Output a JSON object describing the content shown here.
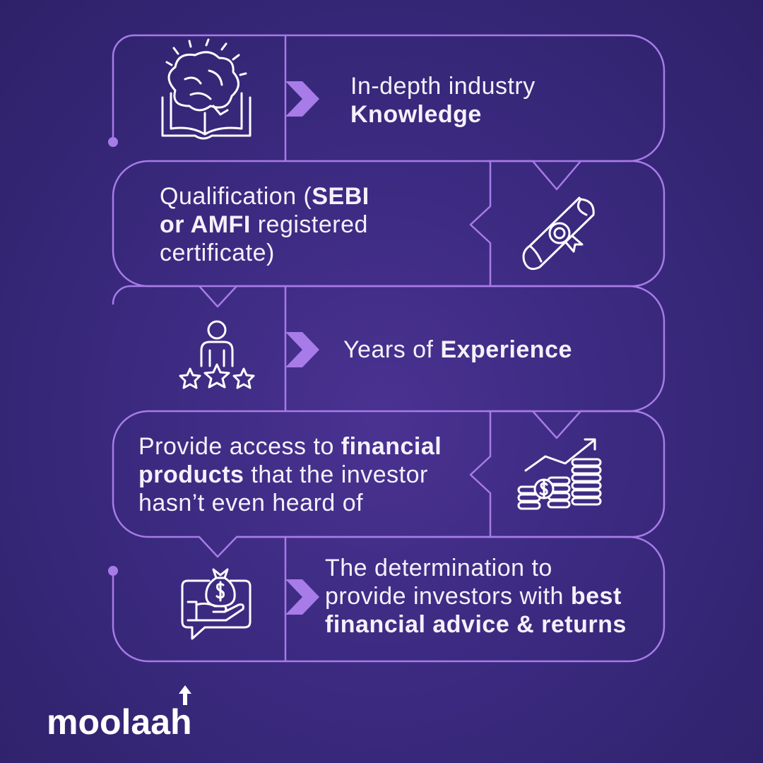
{
  "accent_color": "#a77be8",
  "background_color": "#3b2a80",
  "items": [
    {
      "icon": "brain-book-icon",
      "text_regular": "In-depth industry",
      "text_bold": "Knowledge"
    },
    {
      "icon": "certificate-scroll-icon",
      "text_regular_1": "Qualification (",
      "text_bold_1": "SEBI",
      "text_bold_2": "or AMFI",
      "text_regular_2": " registered",
      "text_regular_3": "certificate)"
    },
    {
      "icon": "person-stars-icon",
      "text_regular": "Years of ",
      "text_bold": "Experience"
    },
    {
      "icon": "coins-growth-icon",
      "text_regular_1": "Provide access to ",
      "text_bold_1": "financial",
      "text_bold_2": "products",
      "text_regular_2": " that the investor",
      "text_regular_3": "hasn’t even heard of"
    },
    {
      "icon": "money-bag-hand-icon",
      "text_regular_1": "The determination to",
      "text_regular_2": "provide investors with ",
      "text_bold_1": "best",
      "text_bold_2": "financial advice & returns"
    }
  ],
  "brand": {
    "name": "moolaah"
  }
}
